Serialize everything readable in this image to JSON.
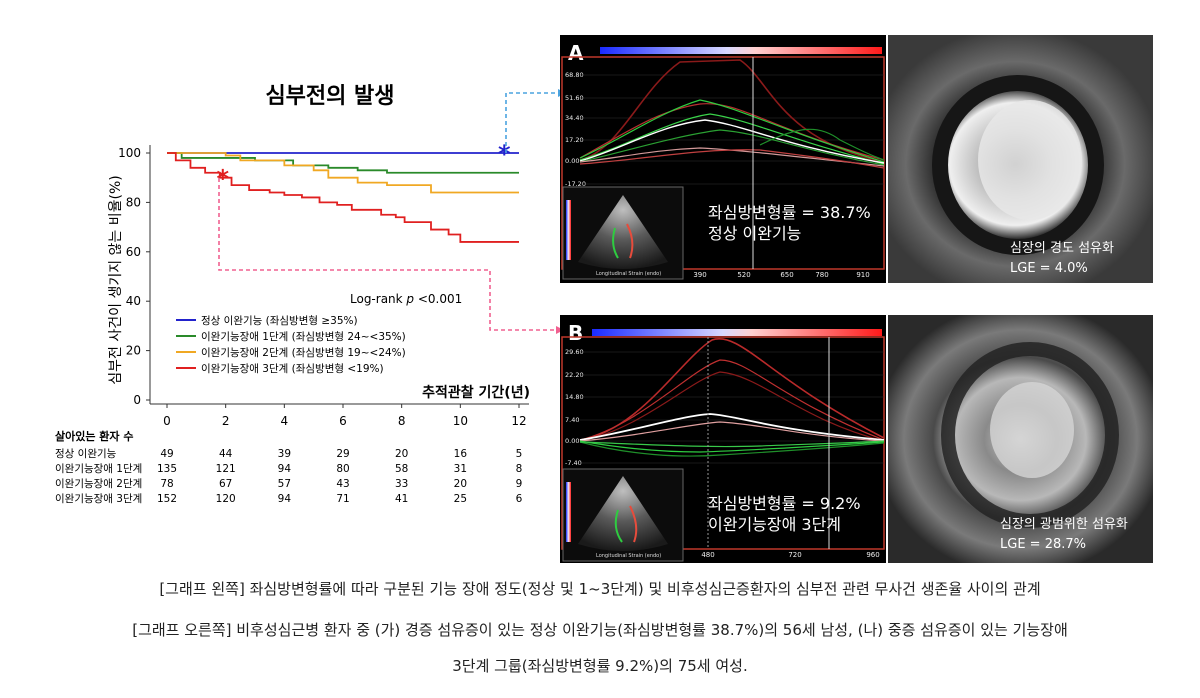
{
  "chart_data": [
    {
      "type": "line",
      "title": "심부전의 발생",
      "xlabel": "추적관찰 기간(년)",
      "ylabel": "심부전 사건이 생기지 않는 비율(%)",
      "xlim": [
        0,
        12
      ],
      "ylim": [
        0,
        100
      ],
      "x_ticks": [
        "0",
        "2",
        "4",
        "6",
        "8",
        "10",
        "12"
      ],
      "y_ticks": [
        "0",
        "20",
        "40",
        "60",
        "80",
        "100"
      ],
      "annotation": "Log-rank p <0.001",
      "annotation_parts": [
        "Log-rank ",
        "p",
        " <0.001"
      ],
      "legend_placement": "lower-left",
      "series": [
        {
          "name": "정상 이완기능 (좌심방변형 ≥35%)",
          "color": "#2222cc",
          "points": [
            [
              0,
              100
            ],
            [
              12,
              100
            ]
          ]
        },
        {
          "name": "이완기능장애 1단계 (좌심방변형 24~<35%)",
          "color": "#2a8a2a",
          "points": [
            [
              0,
              100
            ],
            [
              0.5,
              98
            ],
            [
              2,
              98
            ],
            [
              3,
              97
            ],
            [
              4,
              97
            ],
            [
              4.3,
              95
            ],
            [
              5,
              95
            ],
            [
              5.5,
              94
            ],
            [
              6,
              94
            ],
            [
              6.5,
              93
            ],
            [
              7,
              93
            ],
            [
              7.5,
              92
            ],
            [
              12,
              92
            ]
          ]
        },
        {
          "name": "이완기능장애 2단계 (좌심방변형 19~<24%)",
          "color": "#f0a823",
          "points": [
            [
              0,
              100
            ],
            [
              1,
              100
            ],
            [
              2,
              99
            ],
            [
              2.5,
              97
            ],
            [
              3.5,
              97
            ],
            [
              4,
              95
            ],
            [
              5,
              93
            ],
            [
              5.5,
              90
            ],
            [
              6.5,
              88
            ],
            [
              7.5,
              87
            ],
            [
              8.3,
              87
            ],
            [
              9,
              84
            ],
            [
              12,
              84
            ]
          ]
        },
        {
          "name": "이완기능장애 3단계 (좌심방변형 <19%)",
          "color": "#e02020",
          "points": [
            [
              0,
              100
            ],
            [
              0.3,
              97
            ],
            [
              0.8,
              94
            ],
            [
              1.3,
              92
            ],
            [
              1.8,
              90
            ],
            [
              2.2,
              87
            ],
            [
              2.8,
              85
            ],
            [
              3.5,
              84
            ],
            [
              4,
              83
            ],
            [
              4.6,
              82
            ],
            [
              5.2,
              80
            ],
            [
              5.8,
              79
            ],
            [
              6.3,
              77
            ],
            [
              6.8,
              77
            ],
            [
              7.3,
              75
            ],
            [
              7.8,
              74
            ],
            [
              8.1,
              72
            ],
            [
              8.6,
              72
            ],
            [
              9,
              69
            ],
            [
              9.6,
              67
            ],
            [
              10,
              64
            ],
            [
              12,
              64
            ]
          ]
        }
      ],
      "markers": [
        {
          "symbol": "*",
          "color": "#2222cc",
          "x": 11.5,
          "y": 100
        },
        {
          "symbol": "*",
          "color": "#e02020",
          "x": 1.9,
          "y": 90
        }
      ],
      "risk_table": {
        "title": "살아있는 환자 수",
        "rows": [
          {
            "label": "정상 이완기능",
            "values": [
              "49",
              "44",
              "39",
              "29",
              "20",
              "16",
              "5"
            ]
          },
          {
            "label": "이완기능장애 1단계",
            "values": [
              "135",
              "121",
              "94",
              "80",
              "58",
              "31",
              "8"
            ]
          },
          {
            "label": "이완기능장애 2단계",
            "values": [
              "78",
              "67",
              "57",
              "43",
              "33",
              "20",
              "9"
            ]
          },
          {
            "label": "이완기능장애 3단계",
            "values": [
              "152",
              "120",
              "94",
              "71",
              "41",
              "25",
              "6"
            ]
          }
        ]
      }
    },
    {
      "type": "line",
      "panel": "A",
      "y_ticks": [
        "68.80",
        "51.60",
        "34.40",
        "17.20",
        "0.00",
        "-17.20"
      ],
      "x_ticks": [
        "390",
        "520",
        "650",
        "780",
        "910"
      ],
      "strain_text": "좌심방변형률 = 38.7%",
      "function_text": "정상 이완기능",
      "echo_label": "Longitudinal Strain (endo)",
      "mri_text": "심장의 경도 섬유화",
      "lge_text": "LGE = 4.0%"
    },
    {
      "type": "line",
      "panel": "B",
      "y_ticks": [
        "29.60",
        "22.20",
        "14.80",
        "7.40",
        "0.00",
        "-7.40"
      ],
      "x_ticks": [
        "480",
        "720",
        "960"
      ],
      "strain_text": "좌심방변형률 = 9.2%",
      "function_text": "이완기능장애 3단계",
      "echo_label": "Longitudinal Strain (endo)",
      "mri_text": "심장의 광범위한 섬유화",
      "lge_text": "LGE = 28.7%"
    }
  ],
  "captions": [
    "[그래프 왼쪽] 좌심방변형률에 따라 구분된 기능 장애 정도(정상 및 1~3단계) 및 비후성심근증환자의 심부전 관련 무사건 생존율 사이의 관계",
    "[그래프 오른쪽] 비후성심근병 환자 중 (가) 경증 섬유증이 있는 정상 이완기능(좌심방변형률 38.7%)의 56세 남성, (나) 중증 섬유증이 있는 기능장애",
    "3단계 그룹(좌심방변형률 9.2%)의 75세 여성."
  ]
}
